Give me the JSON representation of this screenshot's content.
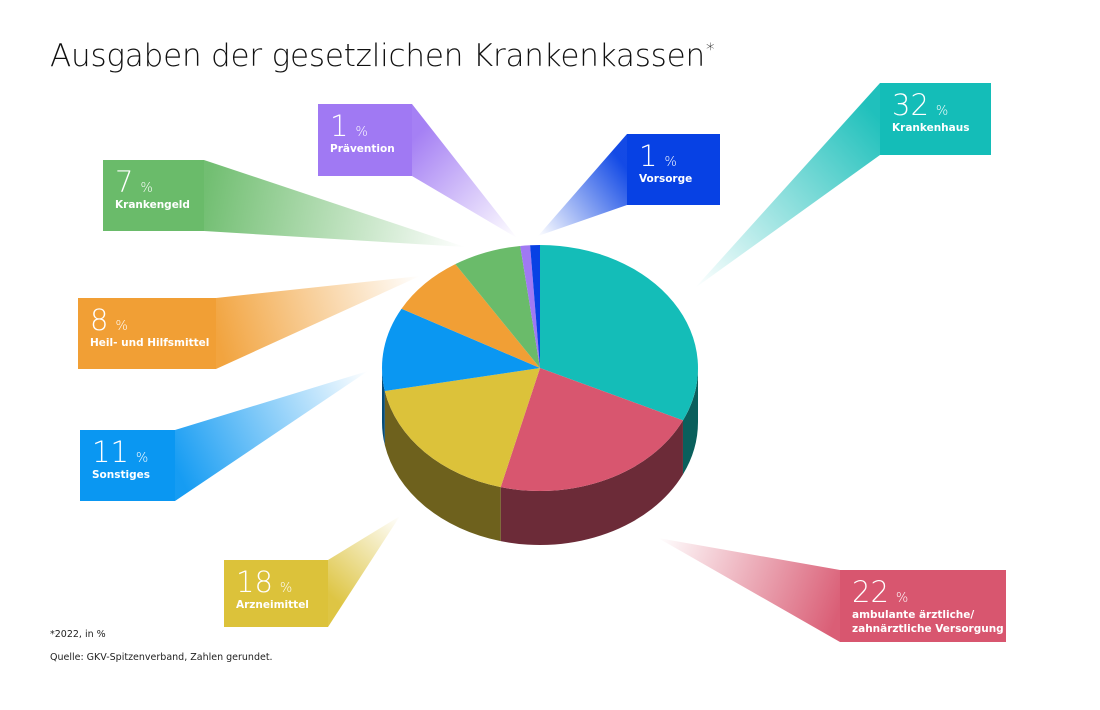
{
  "title": "Ausgaben der gesetzlichen Krankenkassen",
  "title_marker": "*",
  "footnote": "*2022, in %",
  "source": "Quelle: GKV-Spitzenverband, Zahlen gerundet.",
  "chart_data": {
    "type": "pie",
    "unit": "%",
    "slices": [
      {
        "label": "Krankenhaus",
        "value": 32,
        "color": "#14bdb8"
      },
      {
        "label": "ambulante ärztliche/ zahnärztliche Versorgung",
        "value": 22,
        "color": "#d8566f"
      },
      {
        "label": "Arzneimittel",
        "value": 18,
        "color": "#dcc23a"
      },
      {
        "label": "Sonstiges",
        "value": 11,
        "color": "#0a97f2"
      },
      {
        "label": "Heil- und Hilfsmittel",
        "value": 8,
        "color": "#f19f35"
      },
      {
        "label": "Krankengeld",
        "value": 7,
        "color": "#6abb6a"
      },
      {
        "label": "Prävention",
        "value": 1,
        "color": "#a079f3"
      },
      {
        "label": "Vorsorge",
        "value": 1,
        "color": "#0741e4"
      }
    ]
  }
}
